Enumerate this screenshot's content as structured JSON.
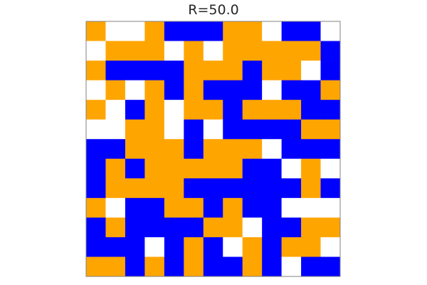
{
  "chart_data": {
    "type": "heatmap",
    "title": "R=50.0",
    "rows": 13,
    "cols": 13,
    "colors": {
      "0": "#ffffff",
      "1": "#ffa500",
      "2": "#0000ff"
    },
    "frame_color": "#808080",
    "grid": [
      [
        1,
        0,
        0,
        1,
        2,
        2,
        2,
        1,
        1,
        0,
        2,
        2,
        0
      ],
      [
        0,
        1,
        1,
        1,
        0,
        1,
        0,
        1,
        1,
        1,
        1,
        1,
        2
      ],
      [
        1,
        2,
        2,
        2,
        2,
        1,
        1,
        1,
        2,
        1,
        1,
        0,
        2
      ],
      [
        0,
        1,
        0,
        1,
        2,
        1,
        2,
        2,
        2,
        0,
        2,
        2,
        1
      ],
      [
        1,
        0,
        2,
        1,
        0,
        1,
        1,
        2,
        1,
        1,
        1,
        2,
        2
      ],
      [
        0,
        0,
        1,
        1,
        0,
        2,
        0,
        2,
        2,
        2,
        2,
        1,
        1
      ],
      [
        2,
        2,
        1,
        1,
        1,
        2,
        1,
        1,
        1,
        0,
        2,
        2,
        2
      ],
      [
        2,
        1,
        2,
        1,
        1,
        1,
        1,
        1,
        2,
        2,
        0,
        1,
        0
      ],
      [
        2,
        1,
        1,
        1,
        1,
        2,
        2,
        2,
        2,
        2,
        2,
        1,
        2
      ],
      [
        1,
        0,
        2,
        2,
        1,
        1,
        2,
        1,
        2,
        2,
        0,
        0,
        0
      ],
      [
        2,
        1,
        2,
        2,
        2,
        2,
        1,
        1,
        0,
        2,
        2,
        1,
        1
      ],
      [
        2,
        2,
        2,
        0,
        2,
        1,
        2,
        0,
        1,
        2,
        1,
        1,
        0
      ],
      [
        1,
        1,
        2,
        1,
        2,
        1,
        2,
        2,
        1,
        2,
        0,
        2,
        2
      ]
    ]
  }
}
